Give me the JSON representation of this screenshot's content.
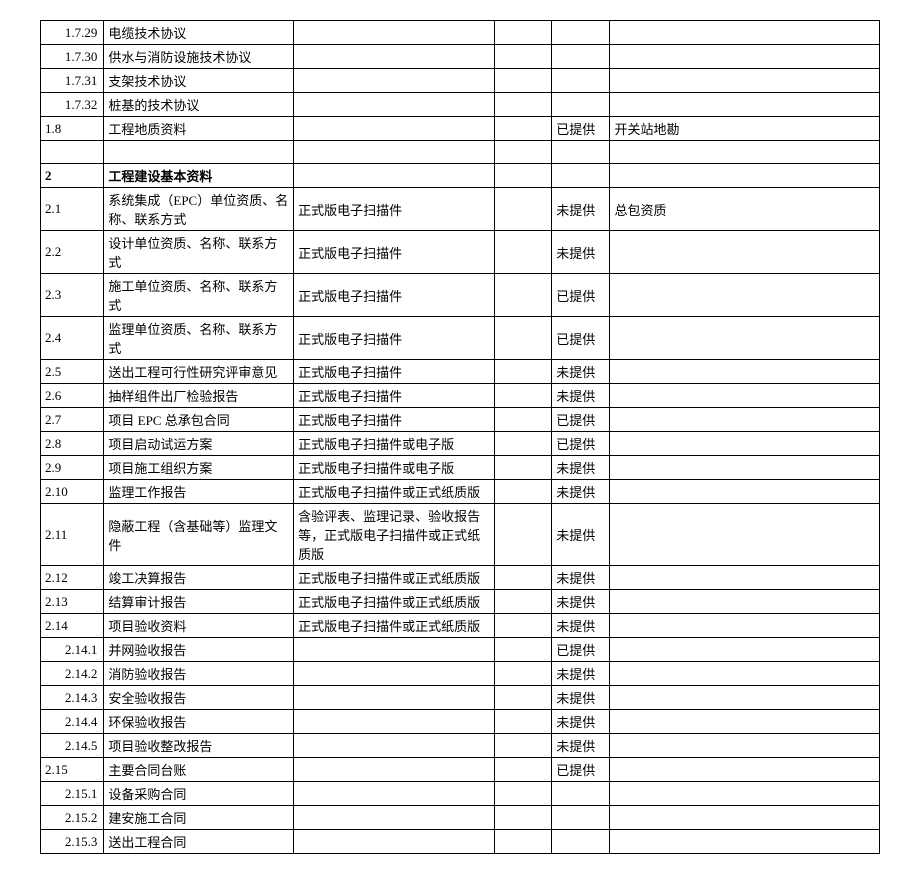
{
  "rows": [
    {
      "num": "1.7.29",
      "name": "电缆技术协议",
      "spec": "",
      "blank": "",
      "status": "",
      "note": "",
      "numAlign": "right"
    },
    {
      "num": "1.7.30",
      "name": "供水与消防设施技术协议",
      "spec": "",
      "blank": "",
      "status": "",
      "note": "",
      "numAlign": "right"
    },
    {
      "num": "1.7.31",
      "name": "支架技术协议",
      "spec": "",
      "blank": "",
      "status": "",
      "note": "",
      "numAlign": "right"
    },
    {
      "num": "1.7.32",
      "name": "桩基的技术协议",
      "spec": "",
      "blank": "",
      "status": "",
      "note": "",
      "numAlign": "right"
    },
    {
      "num": "1.8",
      "name": "工程地质资料",
      "spec": "",
      "blank": "",
      "status": "已提供",
      "note": "开关站地勘",
      "numAlign": "left"
    },
    {
      "num": "",
      "name": "",
      "spec": "",
      "blank": "",
      "status": "",
      "note": "",
      "numAlign": "left"
    },
    {
      "num": "2",
      "name": "工程建设基本资料",
      "spec": "",
      "blank": "",
      "status": "",
      "note": "",
      "numAlign": "left",
      "bold": true
    },
    {
      "num": "2.1",
      "name": "系统集成（EPC）单位资质、名称、联系方式",
      "spec": "正式版电子扫描件",
      "blank": "",
      "status": "未提供",
      "note": "总包资质",
      "numAlign": "left"
    },
    {
      "num": "2.2",
      "name": "设计单位资质、名称、联系方式",
      "spec": "正式版电子扫描件",
      "blank": "",
      "status": "未提供",
      "note": "",
      "numAlign": "left"
    },
    {
      "num": "2.3",
      "name": "施工单位资质、名称、联系方式",
      "spec": "正式版电子扫描件",
      "blank": "",
      "status": "已提供",
      "note": "",
      "numAlign": "left"
    },
    {
      "num": "2.4",
      "name": "监理单位资质、名称、联系方式",
      "spec": "正式版电子扫描件",
      "blank": "",
      "status": "已提供",
      "note": "",
      "numAlign": "left"
    },
    {
      "num": "2.5",
      "name": "送出工程可行性研究评审意见",
      "spec": "正式版电子扫描件",
      "blank": "",
      "status": "未提供",
      "note": "",
      "numAlign": "left"
    },
    {
      "num": "2.6",
      "name": "抽样组件出厂检验报告",
      "spec": "正式版电子扫描件",
      "blank": "",
      "status": "未提供",
      "note": "",
      "numAlign": "left"
    },
    {
      "num": "2.7",
      "name": "项目 EPC 总承包合同",
      "spec": "正式版电子扫描件",
      "blank": "",
      "status": "已提供",
      "note": "",
      "numAlign": "left"
    },
    {
      "num": "2.8",
      "name": "项目启动试运方案",
      "spec": "正式版电子扫描件或电子版",
      "blank": "",
      "status": "已提供",
      "note": "",
      "numAlign": "left"
    },
    {
      "num": "2.9",
      "name": "项目施工组织方案",
      "spec": "正式版电子扫描件或电子版",
      "blank": "",
      "status": "未提供",
      "note": "",
      "numAlign": "left"
    },
    {
      "num": "2.10",
      "name": "监理工作报告",
      "spec": "正式版电子扫描件或正式纸质版",
      "blank": "",
      "status": "未提供",
      "note": "",
      "numAlign": "left"
    },
    {
      "num": "2.11",
      "name": "隐蔽工程（含基础等）监理文件",
      "spec": "含验评表、监理记录、验收报告等，正式版电子扫描件或正式纸质版",
      "blank": "",
      "status": "未提供",
      "note": "",
      "numAlign": "left"
    },
    {
      "num": "2.12",
      "name": "竣工决算报告",
      "spec": "正式版电子扫描件或正式纸质版",
      "blank": "",
      "status": "未提供",
      "note": "",
      "numAlign": "left"
    },
    {
      "num": "2.13",
      "name": "结算审计报告",
      "spec": "正式版电子扫描件或正式纸质版",
      "blank": "",
      "status": "未提供",
      "note": "",
      "numAlign": "left"
    },
    {
      "num": "2.14",
      "name": "项目验收资料",
      "spec": "正式版电子扫描件或正式纸质版",
      "blank": "",
      "status": "未提供",
      "note": "",
      "numAlign": "left"
    },
    {
      "num": "2.14.1",
      "name": "并网验收报告",
      "spec": "",
      "blank": "",
      "status": "已提供",
      "note": "",
      "numAlign": "right"
    },
    {
      "num": "2.14.2",
      "name": "消防验收报告",
      "spec": "",
      "blank": "",
      "status": "未提供",
      "note": "",
      "numAlign": "right"
    },
    {
      "num": "2.14.3",
      "name": "安全验收报告",
      "spec": "",
      "blank": "",
      "status": "未提供",
      "note": "",
      "numAlign": "right"
    },
    {
      "num": "2.14.4",
      "name": "环保验收报告",
      "spec": "",
      "blank": "",
      "status": "未提供",
      "note": "",
      "numAlign": "right"
    },
    {
      "num": "2.14.5",
      "name": "项目验收整改报告",
      "spec": "",
      "blank": "",
      "status": "未提供",
      "note": "",
      "numAlign": "right"
    },
    {
      "num": "2.15",
      "name": "主要合同台账",
      "spec": "",
      "blank": "",
      "status": "已提供",
      "note": "",
      "numAlign": "left"
    },
    {
      "num": "2.15.1",
      "name": "设备采购合同",
      "spec": "",
      "blank": "",
      "status": "",
      "note": "",
      "numAlign": "right"
    },
    {
      "num": "2.15.2",
      "name": "建安施工合同",
      "spec": "",
      "blank": "",
      "status": "",
      "note": "",
      "numAlign": "right"
    },
    {
      "num": "2.15.3",
      "name": "送出工程合同",
      "spec": "",
      "blank": "",
      "status": "",
      "note": "",
      "numAlign": "right"
    }
  ]
}
